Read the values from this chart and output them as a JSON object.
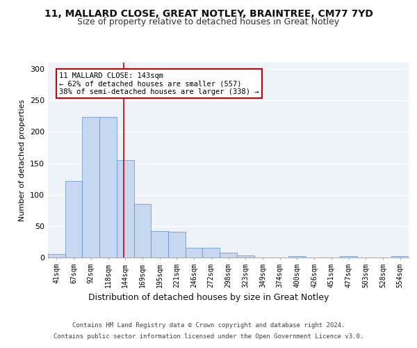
{
  "title1": "11, MALLARD CLOSE, GREAT NOTLEY, BRAINTREE, CM77 7YD",
  "title2": "Size of property relative to detached houses in Great Notley",
  "xlabel": "Distribution of detached houses by size in Great Notley",
  "ylabel": "Number of detached properties",
  "footnote1": "Contains HM Land Registry data © Crown copyright and database right 2024.",
  "footnote2": "Contains public sector information licensed under the Open Government Licence v3.0.",
  "bin_labels": [
    "41sqm",
    "67sqm",
    "92sqm",
    "118sqm",
    "144sqm",
    "169sqm",
    "195sqm",
    "221sqm",
    "246sqm",
    "272sqm",
    "298sqm",
    "323sqm",
    "349sqm",
    "374sqm",
    "400sqm",
    "426sqm",
    "451sqm",
    "477sqm",
    "503sqm",
    "528sqm",
    "554sqm"
  ],
  "bar_values": [
    6,
    122,
    224,
    224,
    155,
    85,
    42,
    41,
    16,
    16,
    8,
    3,
    0,
    0,
    2,
    0,
    0,
    2,
    0,
    0,
    2
  ],
  "bar_color": "#c5d8f0",
  "bar_edge_color": "#5b8fc9",
  "annotation_text": "11 MALLARD CLOSE: 143sqm\n← 62% of detached houses are smaller (557)\n38% of semi-detached houses are larger (338) →",
  "annotation_box_color": "white",
  "annotation_box_edge_color": "#cc0000",
  "vline_color": "#cc0000",
  "vline_pos": 3.92,
  "ylim": [
    0,
    310
  ],
  "yticks": [
    0,
    50,
    100,
    150,
    200,
    250,
    300
  ],
  "background_color": "#eef2f9",
  "grid_color": "white",
  "title1_fontsize": 10,
  "title2_fontsize": 9,
  "xlabel_fontsize": 9,
  "ylabel_fontsize": 8,
  "tick_fontsize": 7,
  "annotation_fontsize": 7.5,
  "footnote_fontsize": 6.5
}
